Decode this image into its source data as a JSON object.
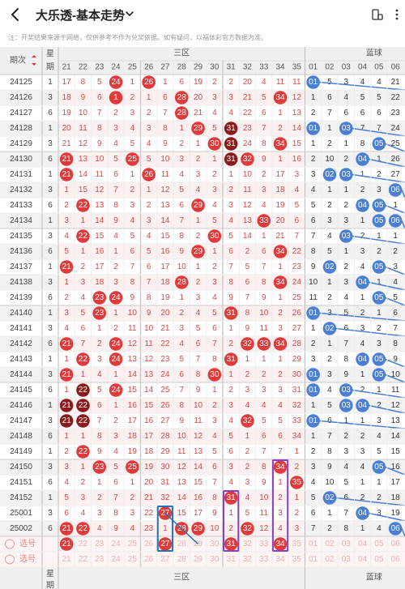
{
  "header": {
    "title": "大乐透-基本走势",
    "back_icon": "chevron-left-icon",
    "dropdown_icon": "chevron-down-icon",
    "right_icons": [
      "phone-rotate-icon",
      "more-icon"
    ]
  },
  "notice": "注：开奖结果来源于网络，仅供参考不作为兑奖依据。如有疑问，以福体彩官方数据为准。",
  "table": {
    "col_period": "期次",
    "col_star": "星期",
    "zone_label": "三区",
    "blue_label": "蓝球",
    "red_numbers": [
      "21",
      "22",
      "23",
      "24",
      "25",
      "26",
      "27",
      "28",
      "29",
      "30",
      "31",
      "32",
      "33",
      "34",
      "35"
    ],
    "blue_numbers": [
      "01",
      "02",
      "03",
      "04",
      "05",
      "06"
    ],
    "rows": [
      {
        "period": "24125",
        "star": "1",
        "reds": [
          "17",
          "8",
          "5",
          "24",
          "1",
          "26",
          "1",
          "6",
          "19",
          "2",
          "2",
          "20",
          "4",
          "11",
          "11"
        ],
        "hits": [
          3,
          5
        ],
        "blues": [
          "01",
          "5",
          "3",
          "4",
          "4",
          "21"
        ],
        "bhits": [
          0
        ]
      },
      {
        "period": "24126",
        "star": "3",
        "reds": [
          "18",
          "9",
          "6",
          "1",
          "2",
          "1",
          "6",
          "28",
          "20",
          "3",
          "3",
          "21",
          "5",
          "34",
          "12"
        ],
        "hits": [
          3,
          7,
          13
        ],
        "blues": [
          "1",
          "6",
          "4",
          "5",
          "5",
          "22"
        ],
        "bhits": []
      },
      {
        "period": "24127",
        "star": "6",
        "reds": [
          "19",
          "10",
          "7",
          "2",
          "3",
          "2",
          "7",
          "28",
          "21",
          "4",
          "4",
          "22",
          "6",
          "1",
          "13"
        ],
        "hits": [
          7
        ],
        "blues": [
          "2",
          "7",
          "6",
          "6",
          "6",
          "23"
        ],
        "bhits": []
      },
      {
        "period": "24128",
        "star": "1",
        "reds": [
          "20",
          "11",
          "8",
          "3",
          "4",
          "3",
          "8",
          "1",
          "29",
          "5",
          "31",
          "23",
          "7",
          "2",
          "14"
        ],
        "hits": [
          8,
          10
        ],
        "blues": [
          "01",
          "1",
          "03",
          "7",
          "7",
          "24"
        ],
        "bhits": [
          0,
          2
        ]
      },
      {
        "period": "24129",
        "star": "3",
        "reds": [
          "21",
          "12",
          "9",
          "4",
          "5",
          "4",
          "9",
          "2",
          "1",
          "30",
          "31",
          "24",
          "8",
          "34",
          "15"
        ],
        "hits": [
          9,
          10,
          13
        ],
        "blues": [
          "1",
          "2",
          "1",
          "8",
          "05",
          "25"
        ],
        "bhits": [
          4
        ]
      },
      {
        "period": "24130",
        "star": "6",
        "reds": [
          "21",
          "13",
          "10",
          "5",
          "25",
          "5",
          "10",
          "3",
          "2",
          "1",
          "31",
          "32",
          "9",
          "1",
          "16"
        ],
        "hits": [
          0,
          4,
          10,
          11
        ],
        "blues": [
          "2",
          "10",
          "2",
          "04",
          "1",
          "26"
        ],
        "bhits": [
          3
        ]
      },
      {
        "period": "24131",
        "star": "1",
        "reds": [
          "21",
          "14",
          "11",
          "6",
          "1",
          "26",
          "11",
          "4",
          "3",
          "2",
          "1",
          "10",
          "2",
          "17",
          "3"
        ],
        "hits": [
          0,
          5
        ],
        "blues": [
          "3",
          "02",
          "03",
          "1",
          "2",
          "27"
        ],
        "bhits": [
          1,
          2
        ]
      },
      {
        "period": "24132",
        "star": "3",
        "reds": [
          "1",
          "15",
          "12",
          "7",
          "2",
          "1",
          "12",
          "5",
          "4",
          "3",
          "2",
          "11",
          "3",
          "18",
          "4"
        ],
        "hits": [],
        "blues": [
          "4",
          "1",
          "1",
          "2",
          "3",
          "06"
        ],
        "bhits": [
          5
        ]
      },
      {
        "period": "24133",
        "star": "6",
        "reds": [
          "2",
          "22",
          "13",
          "8",
          "3",
          "2",
          "13",
          "6",
          "29",
          "4",
          "3",
          "12",
          "4",
          "19",
          "5"
        ],
        "hits": [
          1,
          8
        ],
        "blues": [
          "5",
          "2",
          "2",
          "04",
          "05",
          "1"
        ],
        "bhits": [
          3,
          4
        ]
      },
      {
        "period": "24134",
        "star": "1",
        "reds": [
          "3",
          "1",
          "14",
          "9",
          "4",
          "3",
          "14",
          "7",
          "1",
          "5",
          "4",
          "13",
          "33",
          "20",
          "6"
        ],
        "hits": [
          12
        ],
        "blues": [
          "6",
          "3",
          "3",
          "1",
          "05",
          "06"
        ],
        "bhits": [
          4,
          5
        ]
      },
      {
        "period": "24135",
        "star": "3",
        "reds": [
          "4",
          "22",
          "15",
          "4",
          "5",
          "4",
          "15",
          "8",
          "2",
          "30",
          "5",
          "14",
          "1",
          "21",
          "7"
        ],
        "hits": [
          1,
          9
        ],
        "blues": [
          "7",
          "4",
          "03",
          "2",
          "1",
          "1"
        ],
        "bhits": [
          2
        ]
      },
      {
        "period": "24136",
        "star": "6",
        "reds": [
          "5",
          "1",
          "16",
          "1",
          "6",
          "5",
          "16",
          "9",
          "29",
          "1",
          "6",
          "2",
          "6",
          "34",
          "22"
        ],
        "hits": [
          8,
          13
        ],
        "blues": [
          "8",
          "5",
          "1",
          "3",
          "2",
          "2"
        ],
        "bhits": []
      },
      {
        "period": "24137",
        "star": "1",
        "reds": [
          "21",
          "2",
          "17",
          "2",
          "7",
          "6",
          "17",
          "10",
          "1",
          "2",
          "7",
          "5",
          "7",
          "1",
          "23"
        ],
        "hits": [
          0
        ],
        "blues": [
          "9",
          "02",
          "2",
          "4",
          "05",
          "3"
        ],
        "bhits": [
          1,
          4
        ]
      },
      {
        "period": "24138",
        "star": "3",
        "reds": [
          "1",
          "3",
          "18",
          "3",
          "8",
          "7",
          "18",
          "28",
          "2",
          "3",
          "8",
          "6",
          "8",
          "34",
          "24"
        ],
        "hits": [
          7,
          13
        ],
        "blues": [
          "10",
          "1",
          "3",
          "04",
          "1",
          "4"
        ],
        "bhits": [
          3
        ]
      },
      {
        "period": "24139",
        "star": "6",
        "reds": [
          "2",
          "4",
          "23",
          "24",
          "9",
          "8",
          "19",
          "1",
          "3",
          "4",
          "9",
          "7",
          "9",
          "1",
          "25"
        ],
        "hits": [
          2,
          3
        ],
        "blues": [
          "11",
          "2",
          "4",
          "1",
          "05",
          "5"
        ],
        "bhits": [
          4
        ]
      },
      {
        "period": "24140",
        "star": "1",
        "reds": [
          "3",
          "5",
          "23",
          "1",
          "10",
          "9",
          "20",
          "2",
          "4",
          "5",
          "31",
          "8",
          "10",
          "2",
          "26"
        ],
        "hits": [
          2,
          10
        ],
        "blues": [
          "01",
          "3",
          "5",
          "2",
          "1",
          "6"
        ],
        "bhits": [
          0
        ]
      },
      {
        "period": "24141",
        "star": "3",
        "reds": [
          "4",
          "6",
          "1",
          "2",
          "11",
          "10",
          "21",
          "3",
          "5",
          "6",
          "1",
          "9",
          "11",
          "3",
          "27"
        ],
        "hits": [],
        "blues": [
          "1",
          "02",
          "6",
          "3",
          "2",
          "7"
        ],
        "bhits": [
          1
        ]
      },
      {
        "period": "24142",
        "star": "6",
        "reds": [
          "21",
          "7",
          "2",
          "24",
          "12",
          "11",
          "22",
          "4",
          "6",
          "7",
          "2",
          "32",
          "33",
          "34",
          "28"
        ],
        "hits": [
          0,
          3,
          11,
          12,
          13
        ],
        "blues": [
          "2",
          "1",
          "7",
          "4",
          "3",
          "8"
        ],
        "bhits": []
      },
      {
        "period": "24143",
        "star": "1",
        "reds": [
          "1",
          "22",
          "3",
          "24",
          "13",
          "12",
          "23",
          "5",
          "7",
          "8",
          "31",
          "1",
          "1",
          "1",
          "29"
        ],
        "hits": [
          1,
          3,
          10
        ],
        "blues": [
          "3",
          "2",
          "8",
          "04",
          "05",
          "9"
        ],
        "bhits": [
          3,
          4
        ]
      },
      {
        "period": "24144",
        "star": "3",
        "reds": [
          "21",
          "1",
          "4",
          "1",
          "14",
          "13",
          "24",
          "6",
          "8",
          "30",
          "1",
          "2",
          "2",
          "2",
          "30"
        ],
        "hits": [
          0,
          9
        ],
        "blues": [
          "01",
          "3",
          "9",
          "1",
          "05",
          "10"
        ],
        "bhits": [
          0,
          4
        ]
      },
      {
        "period": "24145",
        "star": "6",
        "reds": [
          "1",
          "22",
          "5",
          "24",
          "15",
          "14",
          "25",
          "7",
          "9",
          "1",
          "2",
          "3",
          "3",
          "3",
          "31"
        ],
        "hits": [
          1,
          3
        ],
        "blues": [
          "01",
          "4",
          "03",
          "2",
          "1",
          "11"
        ],
        "bhits": [
          0,
          2
        ]
      },
      {
        "period": "24146",
        "star": "1",
        "reds": [
          "21",
          "22",
          "6",
          "1",
          "16",
          "15",
          "26",
          "8",
          "10",
          "2",
          "3",
          "4",
          "4",
          "4",
          "32"
        ],
        "hits": [
          0,
          1
        ],
        "blues": [
          "1",
          "5",
          "03",
          "04",
          "2",
          "12"
        ],
        "bhits": [
          2,
          3
        ]
      },
      {
        "period": "24147",
        "star": "3",
        "reds": [
          "21",
          "22",
          "7",
          "2",
          "17",
          "16",
          "27",
          "9",
          "11",
          "3",
          "4",
          "32",
          "5",
          "5",
          "33"
        ],
        "hits": [
          0,
          1,
          11
        ],
        "blues": [
          "01",
          "6",
          "1",
          "1",
          "3",
          "13"
        ],
        "bhits": [
          0
        ]
      },
      {
        "period": "24148",
        "star": "6",
        "reds": [
          "1",
          "1",
          "8",
          "3",
          "18",
          "17",
          "28",
          "10",
          "12",
          "4",
          "5",
          "1",
          "6",
          "6",
          "34"
        ],
        "hits": [],
        "blues": [
          "1",
          "7",
          "2",
          "2",
          "4",
          "14"
        ],
        "bhits": []
      },
      {
        "period": "24149",
        "star": "1",
        "reds": [
          "2",
          "22",
          "9",
          "4",
          "19",
          "18",
          "29",
          "11",
          "13",
          "5",
          "6",
          "2",
          "7",
          "7",
          "1"
        ],
        "hits": [
          1
        ],
        "blues": [
          "2",
          "8",
          "3",
          "3",
          "5",
          "15"
        ],
        "bhits": []
      },
      {
        "period": "24150",
        "star": "3",
        "reds": [
          "3",
          "1",
          "23",
          "5",
          "25",
          "19",
          "30",
          "12",
          "14",
          "6",
          "3",
          "2",
          "8",
          "34",
          "2"
        ],
        "hits": [
          2,
          4,
          13
        ],
        "blues": [
          "3",
          "9",
          "4",
          "4",
          "05",
          "16"
        ],
        "bhits": [
          4
        ]
      },
      {
        "period": "24151",
        "star": "6",
        "reds": [
          "4",
          "2",
          "1",
          "6",
          "1",
          "20",
          "31",
          "13",
          "15",
          "7",
          "4",
          "3",
          "9",
          "1",
          "35"
        ],
        "hits": [
          14
        ],
        "blues": [
          "4",
          "10",
          "5",
          "1",
          "1",
          "17"
        ],
        "bhits": []
      },
      {
        "period": "24152",
        "star": "1",
        "reds": [
          "5",
          "3",
          "2",
          "7",
          "2",
          "21",
          "32",
          "14",
          "16",
          "8",
          "31",
          "4",
          "10",
          "2",
          "1"
        ],
        "hits": [
          10
        ],
        "blues": [
          "5",
          "02",
          "6",
          "2",
          "2",
          "18"
        ],
        "bhits": [
          1
        ]
      },
      {
        "period": "25001",
        "star": "3",
        "reds": [
          "6",
          "4",
          "3",
          "8",
          "3",
          "22",
          "27",
          "15",
          "17",
          "9",
          "1",
          "5",
          "11",
          "3",
          "2"
        ],
        "hits": [
          6
        ],
        "blues": [
          "6",
          "1",
          "7",
          "04",
          "3",
          "19"
        ],
        "bhits": [
          3
        ]
      },
      {
        "period": "25002",
        "star": "6",
        "reds": [
          "21",
          "22",
          "4",
          "9",
          "4",
          "23",
          "1",
          "28",
          "29",
          "10",
          "2",
          "32",
          "12",
          "4",
          "3"
        ],
        "hits": [
          0,
          1,
          7,
          8,
          11
        ],
        "blues": [
          "7",
          "2",
          "8",
          "1",
          "4",
          "06"
        ],
        "bhits": [
          5
        ]
      }
    ],
    "select_rows": [
      {
        "label": "选号",
        "reds": [
          "21",
          "22",
          "23",
          "24",
          "25",
          "26",
          "27",
          "28",
          "29",
          "30",
          "31",
          "32",
          "33",
          "34",
          "35"
        ],
        "hits": [
          0,
          6,
          10,
          13
        ],
        "blues": [
          "01",
          "02",
          "03",
          "04",
          "05",
          "06"
        ]
      },
      {
        "label": "选号",
        "reds": [
          "21",
          "22",
          "23",
          "24",
          "25",
          "26",
          "27",
          "28",
          "29",
          "30",
          "31",
          "32",
          "33",
          "34",
          "35"
        ],
        "hits": [],
        "blues": [
          "01",
          "02",
          "03",
          "04",
          "05",
          "06"
        ]
      }
    ]
  },
  "colors": {
    "red_ball": "#e03a3a",
    "red_ball_dark": "#8b1a1a",
    "blue_ball": "#4a7fd4",
    "miss_red_text": "#d24a4a",
    "miss_blue_text": "#333333",
    "header_bg": "#f0f0f0",
    "stripe_pink": "#fdf0f0",
    "stripe_gray": "#f2f2f2",
    "grid_line": "#dddddd",
    "box_blue": "#2a6fb8",
    "box_purple": "#8a3fc8"
  }
}
